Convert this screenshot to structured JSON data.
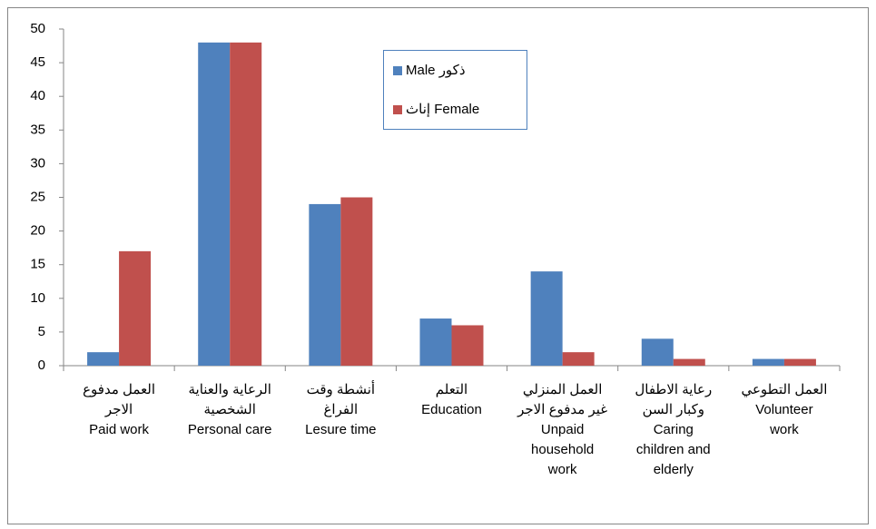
{
  "chart_data": {
    "type": "bar",
    "categories": [
      [
        "العمل مدفوع",
        "الاجر",
        "Paid work"
      ],
      [
        "الرعاية والعناية",
        "الشخصية",
        "Personal care"
      ],
      [
        "أنشطة وقت",
        "الفراغ",
        "Lesure time"
      ],
      [
        "التعلم",
        "Education"
      ],
      [
        "العمل المنزلي",
        "غير مدفوع الاجر",
        "Unpaid",
        "household",
        "work"
      ],
      [
        "رعاية الاطفال",
        "وكبار السن",
        "Caring",
        "children and",
        "elderly"
      ],
      [
        "العمل التطوعي",
        "Volunteer",
        "work"
      ]
    ],
    "series": [
      {
        "name": "Male ذكور",
        "color": "#4f81bd",
        "values": [
          2,
          48,
          24,
          7,
          14,
          4,
          1
        ]
      },
      {
        "name": "إناث Female",
        "color": "#c0504d",
        "values": [
          17,
          48,
          25,
          6,
          2,
          1,
          1
        ]
      }
    ],
    "ylim": [
      0,
      50
    ],
    "yticks": [
      0,
      5,
      10,
      15,
      20,
      25,
      30,
      35,
      40,
      45,
      50
    ],
    "grid": false
  }
}
